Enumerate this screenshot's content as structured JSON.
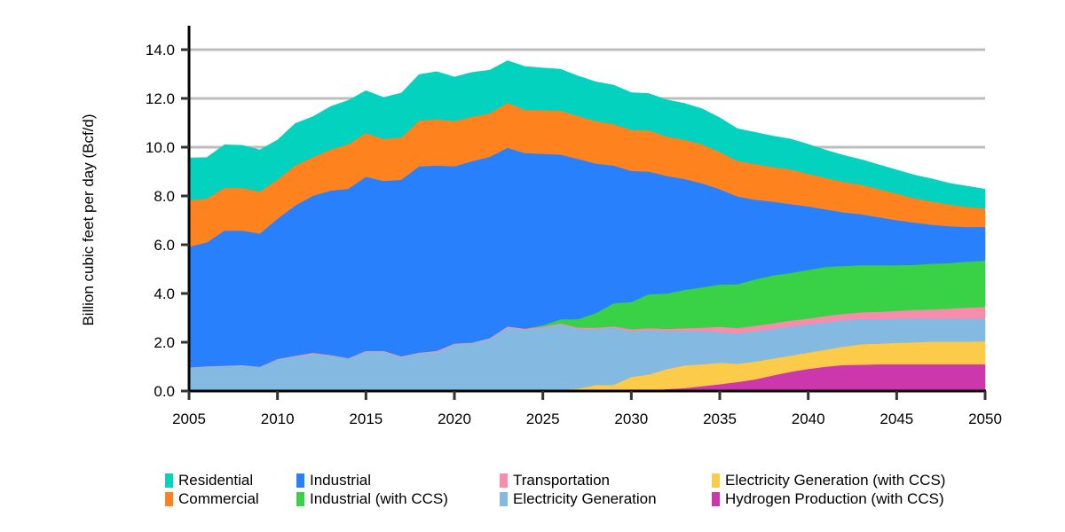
{
  "chart_data": {
    "type": "area",
    "stacked": true,
    "title": "",
    "xlabel": "",
    "ylabel": "Billion cubic feet per day (Bcf/d)",
    "xlim": [
      2005,
      2050
    ],
    "ylim": [
      0,
      14
    ],
    "x_ticks": [
      "2005",
      "2010",
      "2015",
      "2020",
      "2025",
      "2030",
      "2035",
      "2040",
      "2045",
      "2050"
    ],
    "y_ticks": [
      "0.0",
      "2.0",
      "4.0",
      "6.0",
      "8.0",
      "10.0",
      "12.0",
      "14.0"
    ],
    "grid": "horizontal",
    "legend_position": "bottom",
    "x": [
      2005,
      2006,
      2007,
      2008,
      2009,
      2010,
      2011,
      2012,
      2013,
      2014,
      2015,
      2016,
      2017,
      2018,
      2019,
      2020,
      2021,
      2022,
      2023,
      2024,
      2025,
      2026,
      2027,
      2028,
      2029,
      2030,
      2031,
      2032,
      2033,
      2034,
      2035,
      2036,
      2037,
      2038,
      2039,
      2040,
      2041,
      2042,
      2043,
      2044,
      2045,
      2046,
      2047,
      2048,
      2049,
      2050
    ],
    "series": [
      {
        "name": "Hydrogen Production (with CCS)",
        "color": "#cc37ad",
        "values": [
          0,
          0,
          0,
          0,
          0,
          0,
          0,
          0,
          0,
          0,
          0,
          0,
          0,
          0,
          0,
          0,
          0,
          0,
          0,
          0,
          0,
          0,
          0,
          0,
          0,
          0,
          0.02,
          0.08,
          0.12,
          0.2,
          0.28,
          0.37,
          0.48,
          0.64,
          0.79,
          0.91,
          1.0,
          1.07,
          1.08,
          1.1,
          1.1,
          1.1,
          1.1,
          1.1,
          1.1,
          1.1
        ]
      },
      {
        "name": "Electricity Generation (with CCS)",
        "color": "#fdcb4a",
        "values": [
          0,
          0,
          0,
          0,
          0,
          0,
          0,
          0,
          0,
          0,
          0,
          0,
          0,
          0,
          0,
          0,
          0,
          0,
          0,
          0,
          0.05,
          0.05,
          0.1,
          0.25,
          0.25,
          0.58,
          0.66,
          0.82,
          0.93,
          0.9,
          0.88,
          0.75,
          0.73,
          0.69,
          0.66,
          0.67,
          0.7,
          0.75,
          0.84,
          0.84,
          0.88,
          0.9,
          0.93,
          0.93,
          0.93,
          0.94
        ]
      },
      {
        "name": "Electricity Generation",
        "color": "#84b9e1",
        "values": [
          0.95,
          1.0,
          1.02,
          1.05,
          0.98,
          1.3,
          1.42,
          1.52,
          1.45,
          1.32,
          1.62,
          1.62,
          1.4,
          1.55,
          1.6,
          1.92,
          1.96,
          2.15,
          2.6,
          2.52,
          2.55,
          2.69,
          2.45,
          2.3,
          2.35,
          1.87,
          1.82,
          1.57,
          1.42,
          1.37,
          1.26,
          1.24,
          1.25,
          1.22,
          1.2,
          1.16,
          1.12,
          1.09,
          1.03,
          1.01,
          0.99,
          0.97,
          0.94,
          0.94,
          0.94,
          0.94
        ]
      },
      {
        "name": "Transportation",
        "color": "#f98bab",
        "values": [
          0.02,
          0.02,
          0.02,
          0.02,
          0.02,
          0.02,
          0.03,
          0.05,
          0.03,
          0.03,
          0.03,
          0.03,
          0.03,
          0.03,
          0.05,
          0.03,
          0.03,
          0.03,
          0.05,
          0.04,
          0.04,
          0.04,
          0.05,
          0.05,
          0.05,
          0.08,
          0.08,
          0.08,
          0.11,
          0.13,
          0.22,
          0.22,
          0.22,
          0.23,
          0.24,
          0.23,
          0.26,
          0.26,
          0.28,
          0.3,
          0.32,
          0.36,
          0.38,
          0.41,
          0.45,
          0.47
        ]
      },
      {
        "name": "Industrial (with CCS)",
        "color": "#39d145",
        "values": [
          0,
          0,
          0,
          0,
          0,
          0,
          0,
          0,
          0,
          0,
          0,
          0,
          0,
          0,
          0,
          0,
          0,
          0,
          0,
          0,
          0.06,
          0.16,
          0.35,
          0.6,
          0.95,
          1.12,
          1.39,
          1.45,
          1.57,
          1.65,
          1.73,
          1.8,
          1.9,
          1.96,
          1.95,
          2.0,
          2.01,
          1.96,
          1.93,
          1.91,
          1.87,
          1.85,
          1.87,
          1.87,
          1.89,
          1.9
        ]
      },
      {
        "name": "Industrial",
        "color": "#2980fd",
        "values": [
          4.95,
          5.08,
          5.54,
          5.51,
          5.46,
          5.75,
          6.16,
          6.44,
          6.74,
          6.95,
          7.14,
          6.97,
          7.24,
          7.64,
          7.6,
          7.27,
          7.44,
          7.43,
          7.33,
          7.2,
          7.03,
          6.76,
          6.57,
          6.13,
          5.65,
          5.38,
          5.03,
          4.82,
          4.55,
          4.27,
          3.91,
          3.6,
          3.27,
          3.03,
          2.83,
          2.6,
          2.36,
          2.2,
          2.09,
          1.97,
          1.85,
          1.73,
          1.6,
          1.51,
          1.42,
          1.38
        ]
      },
      {
        "name": "Commercial",
        "color": "#fe831e",
        "values": [
          1.91,
          1.79,
          1.75,
          1.75,
          1.72,
          1.6,
          1.64,
          1.58,
          1.69,
          1.82,
          1.79,
          1.72,
          1.73,
          1.87,
          1.9,
          1.85,
          1.82,
          1.78,
          1.84,
          1.77,
          1.79,
          1.8,
          1.76,
          1.74,
          1.7,
          1.68,
          1.69,
          1.62,
          1.61,
          1.6,
          1.52,
          1.46,
          1.46,
          1.42,
          1.42,
          1.34,
          1.29,
          1.25,
          1.21,
          1.15,
          1.09,
          1.0,
          0.95,
          0.89,
          0.82,
          0.76
        ]
      },
      {
        "name": "Residential",
        "color": "#02d2be",
        "values": [
          1.73,
          1.69,
          1.77,
          1.75,
          1.71,
          1.63,
          1.72,
          1.66,
          1.76,
          1.8,
          1.74,
          1.7,
          1.82,
          1.89,
          1.95,
          1.81,
          1.82,
          1.77,
          1.73,
          1.78,
          1.73,
          1.7,
          1.64,
          1.61,
          1.6,
          1.53,
          1.51,
          1.5,
          1.49,
          1.46,
          1.41,
          1.32,
          1.3,
          1.27,
          1.25,
          1.21,
          1.14,
          1.09,
          1.03,
          1.0,
          0.97,
          0.95,
          0.93,
          0.87,
          0.85,
          0.79
        ]
      }
    ],
    "legend": [
      {
        "label": "Residential",
        "color": "#02d2be"
      },
      {
        "label": "Commercial",
        "color": "#fe831e"
      },
      {
        "label": "Industrial",
        "color": "#2980fd"
      },
      {
        "label": "Industrial (with CCS)",
        "color": "#39d145"
      },
      {
        "label": "Transportation",
        "color": "#f98bab"
      },
      {
        "label": "Electricity Generation",
        "color": "#84b9e1"
      },
      {
        "label": "Electricity Generation (with CCS)",
        "color": "#fdcb4a"
      },
      {
        "label": "Hydrogen Production (with CCS)",
        "color": "#cc37ad"
      }
    ]
  }
}
